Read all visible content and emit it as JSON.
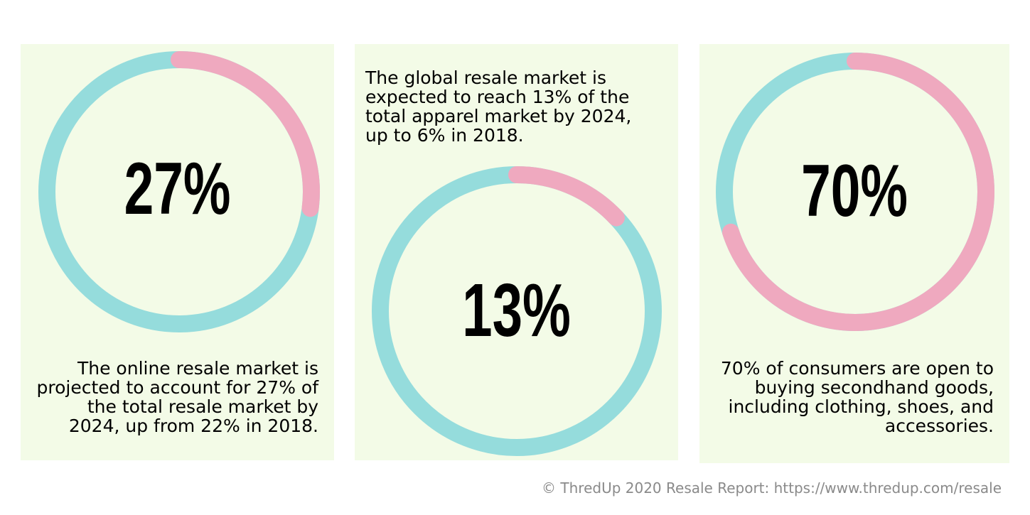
{
  "colors": {
    "panel": "#f3fbe7",
    "track": "#95dcdc",
    "accent": "#efa9bf"
  },
  "chart_data": [
    {
      "type": "pie",
      "style": "donut",
      "percent": 27,
      "label": "27%",
      "slices": [
        {
          "name": "online",
          "value": 27,
          "color": "#efa9bf"
        },
        {
          "name": "other",
          "value": 73,
          "color": "#95dcdc"
        }
      ],
      "description": "The online resale market is projected to account for 27% of the total resale market by 2024, up from 22% in 2018."
    },
    {
      "type": "pie",
      "style": "donut",
      "percent": 13,
      "label": "13%",
      "slices": [
        {
          "name": "resale",
          "value": 13,
          "color": "#efa9bf"
        },
        {
          "name": "other",
          "value": 87,
          "color": "#95dcdc"
        }
      ],
      "description": "The global resale market is expected to reach 13% of the total apparel market by 2024, up to 6% in 2018."
    },
    {
      "type": "pie",
      "style": "donut",
      "percent": 70,
      "label": "70%",
      "slices": [
        {
          "name": "open",
          "value": 70,
          "color": "#efa9bf"
        },
        {
          "name": "other",
          "value": 30,
          "color": "#95dcdc"
        }
      ],
      "description": "70% of consumers are open to buying secondhand goods, including clothing, shoes, and accessories."
    }
  ],
  "footer": {
    "credit": "© ThredUp 2020 Resale Report:  https://www.thredup.com/resale"
  }
}
